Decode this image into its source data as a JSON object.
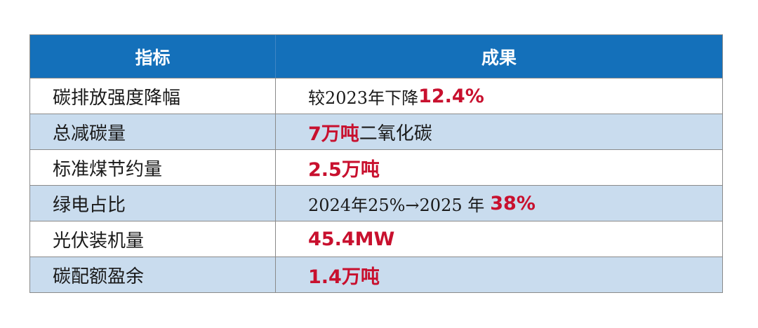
{
  "table": {
    "headers": [
      "指标",
      "成果"
    ],
    "rows": [
      {
        "indicator": "碳排放强度降幅",
        "result_pre": "较2023年下降",
        "result_highlight": "12.4%",
        "result_post": ""
      },
      {
        "indicator": "总减碳量",
        "result_pre": "",
        "result_highlight": "7万吨",
        "result_post": "二氧化碳"
      },
      {
        "indicator": "标准煤节约量",
        "result_pre": "",
        "result_highlight": "2.5万吨",
        "result_post": ""
      },
      {
        "indicator": "绿电占比",
        "result_pre": "2024年25%→2025 年",
        "result_highlight": "38%",
        "result_post": ""
      },
      {
        "indicator": "光伏装机量",
        "result_pre": "",
        "result_highlight": "45.4MW",
        "result_post": ""
      },
      {
        "indicator": "碳配额盈余",
        "result_pre": "",
        "result_highlight": "1.4万吨",
        "result_post": ""
      }
    ]
  },
  "colors": {
    "header_bg": "#1470ba",
    "shaded_row_bg": "#c9dcee",
    "highlight_text": "#c8102e"
  }
}
